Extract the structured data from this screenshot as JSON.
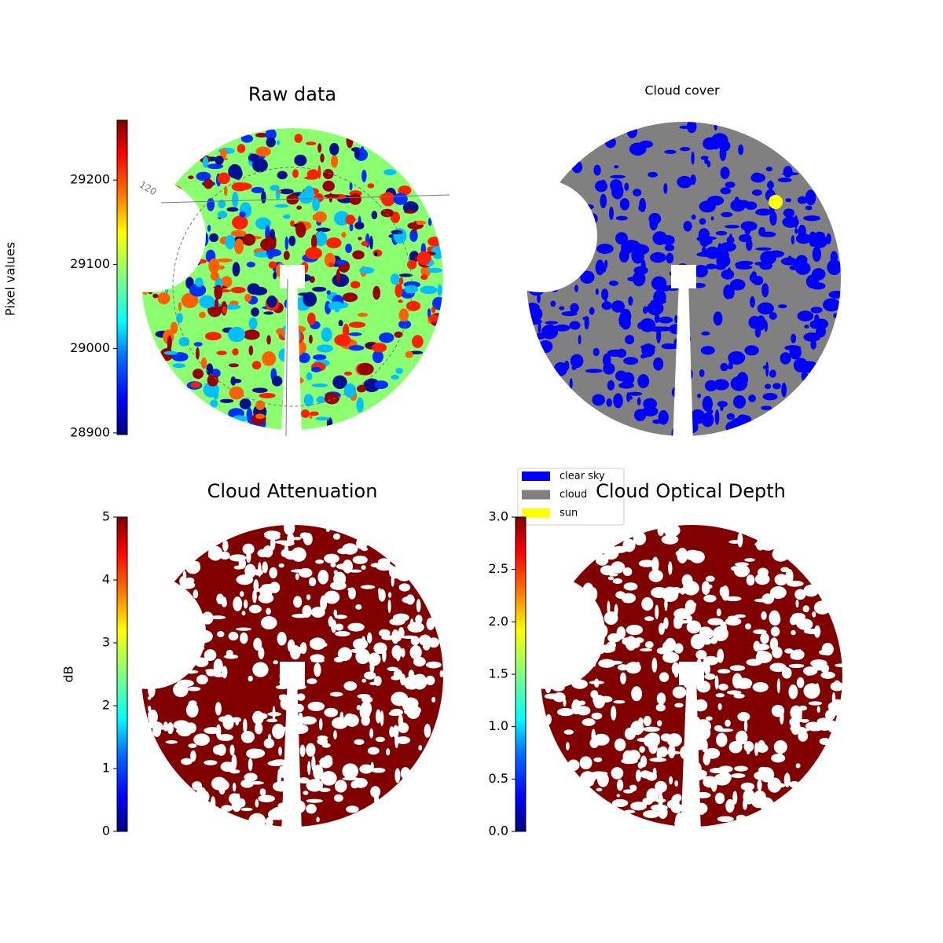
{
  "chart_data": [
    {
      "type": "image",
      "title": "Raw data",
      "cmap": "jet",
      "colorbar_label": "Pixel values",
      "clim": [
        28898,
        29271
      ],
      "cticks": [
        28900,
        29000,
        29100,
        29200
      ],
      "annotation": "120"
    },
    {
      "type": "image",
      "title": "Cloud cover",
      "legend": [
        {
          "name": "clear sky",
          "color": "#0000ff"
        },
        {
          "name": "cloud",
          "color": "#808080"
        },
        {
          "name": "sun",
          "color": "#ffff00"
        }
      ]
    },
    {
      "type": "image",
      "title": "Cloud Attenuation",
      "cmap": "jet",
      "colorbar_label": "dB",
      "clim": [
        0,
        5
      ],
      "cticks": [
        0,
        1,
        2,
        3,
        4,
        5
      ]
    },
    {
      "type": "image",
      "title": "Cloud Optical Depth",
      "cmap": "jet",
      "clim": [
        0,
        3
      ],
      "cticks": [
        {
          "value": 0,
          "label": "0.0"
        },
        {
          "value": 0.5,
          "label": "0.5"
        },
        {
          "value": 1,
          "label": "1.0"
        },
        {
          "value": 1.5,
          "label": "1.5"
        },
        {
          "value": 2,
          "label": "2.0"
        },
        {
          "value": 2.5,
          "label": "2.5"
        },
        {
          "value": 3,
          "label": "3.0"
        }
      ]
    }
  ]
}
